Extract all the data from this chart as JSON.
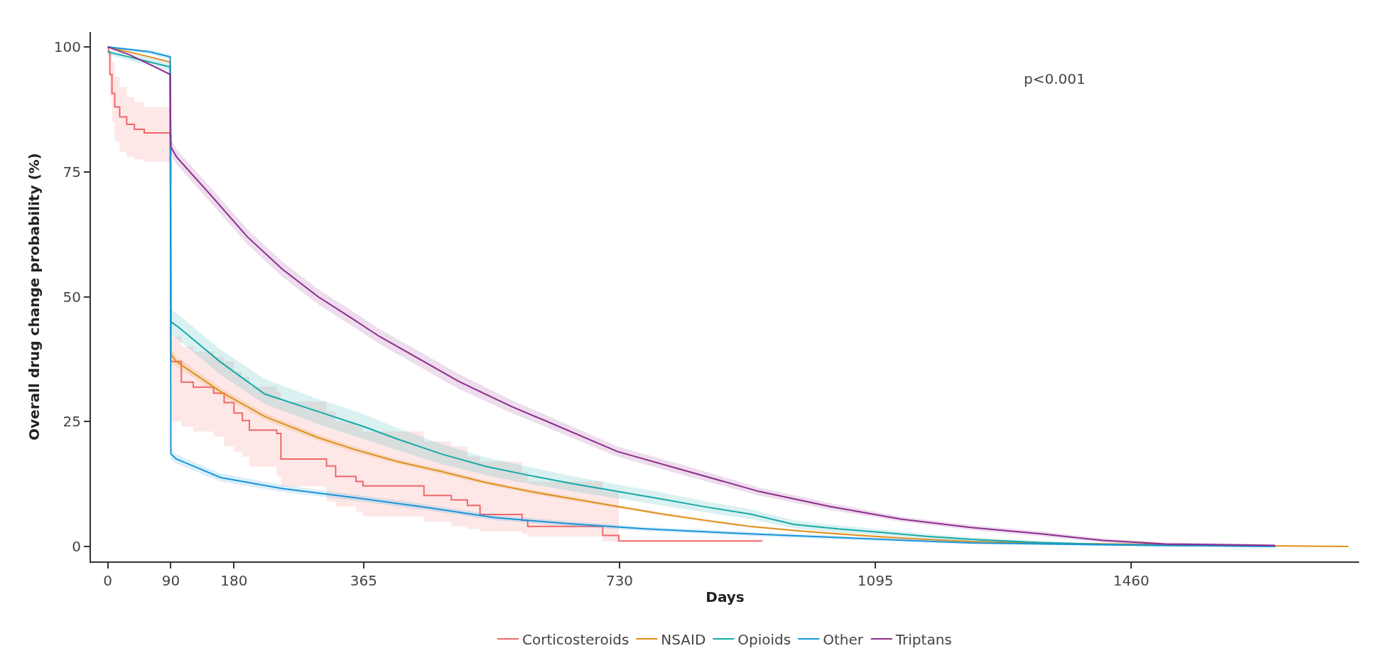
{
  "chart_data": {
    "type": "step",
    "xlabel": "Days",
    "ylabel": "Overall drug change probability (%)",
    "xlim": [
      -24,
      1785
    ],
    "xticks": [
      0,
      90,
      180,
      365,
      730,
      1095,
      1460
    ],
    "ylim": [
      -3,
      103
    ],
    "yticks": [
      0,
      25,
      50,
      75,
      100
    ],
    "grid": false,
    "legend": "bottom",
    "marker": "none",
    "line_style": "solid",
    "annotations": [
      "p<0.001"
    ],
    "series": [
      {
        "name": "Corticosteroids",
        "color": "#f0686a",
        "x": [
          0,
          1,
          3,
          6,
          10,
          17,
          27,
          38,
          52,
          89,
          90,
          105,
          122,
          151,
          166,
          180,
          192,
          202,
          241,
          247,
          312,
          325,
          354,
          364,
          451,
          490,
          513,
          531,
          591,
          599,
          706,
          729,
          934
        ],
        "values": [
          100,
          99,
          94.5,
          90.7,
          88,
          86,
          84.5,
          83.5,
          82.8,
          82.3,
          37,
          32.9,
          31.9,
          30.7,
          28.8,
          26.7,
          25.2,
          23.3,
          22.6,
          17.5,
          16.1,
          14,
          13,
          12.1,
          10.2,
          9.3,
          8.2,
          6.4,
          5.2,
          4,
          2.2,
          1.1,
          1.1
        ],
        "lower": [
          100,
          98,
          90,
          85,
          81,
          79,
          78,
          77.5,
          77,
          77,
          25,
          24,
          23,
          22,
          20,
          19,
          18,
          16,
          14,
          12,
          9,
          8,
          7,
          6,
          5,
          4,
          3.5,
          3,
          2.5,
          2,
          1,
          0.5,
          null
        ],
        "upper": [
          100,
          100,
          99,
          97,
          94,
          92,
          90,
          89,
          88,
          88,
          42,
          40,
          39,
          38,
          37,
          35,
          34,
          32,
          31,
          29,
          27,
          25,
          24,
          23,
          21,
          20,
          18,
          17,
          15,
          13,
          11,
          9,
          null
        ]
      },
      {
        "name": "NSAID",
        "type": "line",
        "color": "#e0901e",
        "x": [
          0,
          30,
          60,
          89,
          90,
          98,
          161,
          224,
          300,
          350,
          413,
          476,
          539,
          602,
          665,
          727,
          790,
          853,
          916,
          979,
          1042,
          1105,
          1168,
          1231,
          1357,
          1483,
          1600,
          1770
        ],
        "values": [
          100,
          99,
          98,
          97,
          38.5,
          37,
          31,
          26,
          21.8,
          19.5,
          17,
          15,
          12.8,
          11,
          9.5,
          8,
          6.5,
          5.2,
          4,
          3.2,
          2.5,
          1.9,
          1.4,
          1,
          0.6,
          0.4,
          0.2,
          0
        ],
        "lower": [
          99.8,
          98.8,
          97.8,
          96.8,
          37.5,
          36,
          30.2,
          25.3,
          21.2,
          18.9,
          16.5,
          14.5,
          12.4,
          10.6,
          9.1,
          7.7,
          6.2,
          4.9,
          3.8,
          3,
          2.3,
          1.7,
          1.3,
          0.9,
          0.5,
          0.3,
          0.1,
          0
        ],
        "upper": [
          100,
          99.2,
          98.2,
          97.2,
          39.5,
          38,
          31.8,
          26.7,
          22.4,
          20.1,
          17.5,
          15.5,
          13.2,
          11.4,
          9.9,
          8.3,
          6.8,
          5.5,
          4.2,
          3.4,
          2.7,
          2.1,
          1.5,
          1.1,
          0.7,
          0.5,
          0.3,
          0.1
        ]
      },
      {
        "name": "Opioids",
        "type": "line",
        "color": "#17aaa8",
        "x": [
          0,
          30,
          60,
          89,
          90,
          100,
          160,
          224,
          300,
          365,
          413,
          476,
          540,
          602,
          665,
          727,
          790,
          853,
          916,
          979,
          1042,
          1105,
          1168,
          1231,
          1326,
          1420,
          1540,
          1659
        ],
        "values": [
          99,
          98,
          97,
          96,
          45,
          44,
          37,
          30.5,
          27,
          24,
          21.5,
          18.5,
          16,
          14.2,
          12.5,
          11,
          9.5,
          7.9,
          6.5,
          4.4,
          3.5,
          2.8,
          2,
          1.4,
          0.8,
          0.4,
          0.2,
          0
        ],
        "lower": [
          98.5,
          97.3,
          96.2,
          95.2,
          42.5,
          41.5,
          34.5,
          28.5,
          24.5,
          21.5,
          19.3,
          16.5,
          14.2,
          12.5,
          11,
          9.6,
          8.2,
          6.8,
          5.5,
          3.6,
          2.8,
          2.2,
          1.5,
          1,
          0.5,
          0.2,
          0,
          0
        ],
        "upper": [
          99.5,
          98.7,
          97.8,
          96.8,
          47.5,
          46.5,
          39.5,
          33.5,
          29.5,
          26.5,
          23.7,
          20.5,
          17.8,
          15.9,
          14,
          12.4,
          10.8,
          9,
          7.5,
          5.2,
          4.2,
          3.4,
          2.5,
          1.8,
          1.1,
          0.6,
          0.4,
          0.1
        ]
      },
      {
        "name": "Other",
        "type": "line",
        "color": "#1a95d8",
        "x": [
          0,
          30,
          60,
          89,
          90,
          98,
          161,
          249,
          350,
          451,
          551,
          652,
          767,
          916,
          1105,
          1231,
          1483,
          1666
        ],
        "values": [
          100,
          99.5,
          99,
          98,
          18.5,
          17.5,
          13.8,
          11.6,
          9.8,
          7.9,
          5.8,
          4.6,
          3.5,
          2.5,
          1.4,
          0.7,
          0.2,
          0
        ],
        "lower": [
          99.8,
          99.2,
          98.6,
          97.5,
          17.5,
          16.6,
          13,
          10.9,
          9.2,
          7.3,
          5.3,
          4.1,
          3.1,
          2.1,
          1.1,
          0.5,
          0.1,
          0
        ],
        "upper": [
          100,
          99.8,
          99.4,
          98.5,
          19.5,
          18.4,
          14.6,
          12.3,
          10.4,
          8.5,
          6.3,
          5.1,
          3.9,
          2.9,
          1.7,
          0.9,
          0.3,
          0.1
        ]
      },
      {
        "name": "Triptans",
        "type": "line",
        "color": "#8e2c8e",
        "x": [
          0,
          30,
          60,
          89,
          90,
          98,
          149,
          199,
          249,
          300,
          350,
          388,
          451,
          501,
          576,
          627,
          727,
          828,
          929,
          1030,
          1130,
          1231,
          1332,
          1420,
          1508,
          1665
        ],
        "values": [
          100,
          98.5,
          96.5,
          94.5,
          80,
          78,
          70,
          62,
          55.5,
          50,
          45.5,
          42,
          37,
          33,
          28,
          25,
          19,
          15,
          11,
          8,
          5.5,
          3.8,
          2.5,
          1.2,
          0.5,
          0.2
        ],
        "lower": [
          null,
          null,
          null,
          null,
          78.5,
          76.5,
          68.5,
          60.5,
          54,
          48.5,
          44,
          40.5,
          35.5,
          31.5,
          26.7,
          23.8,
          18,
          14,
          10.2,
          7.3,
          5,
          3.3,
          2,
          0.8,
          0.2,
          0
        ],
        "upper": [
          null,
          null,
          null,
          null,
          81.5,
          79.5,
          71.5,
          63.5,
          57,
          51.5,
          47,
          43.5,
          38.5,
          34.5,
          29.3,
          26.2,
          20,
          16,
          11.8,
          8.7,
          6,
          4.3,
          3,
          1.6,
          0.8,
          0.4
        ]
      }
    ]
  }
}
